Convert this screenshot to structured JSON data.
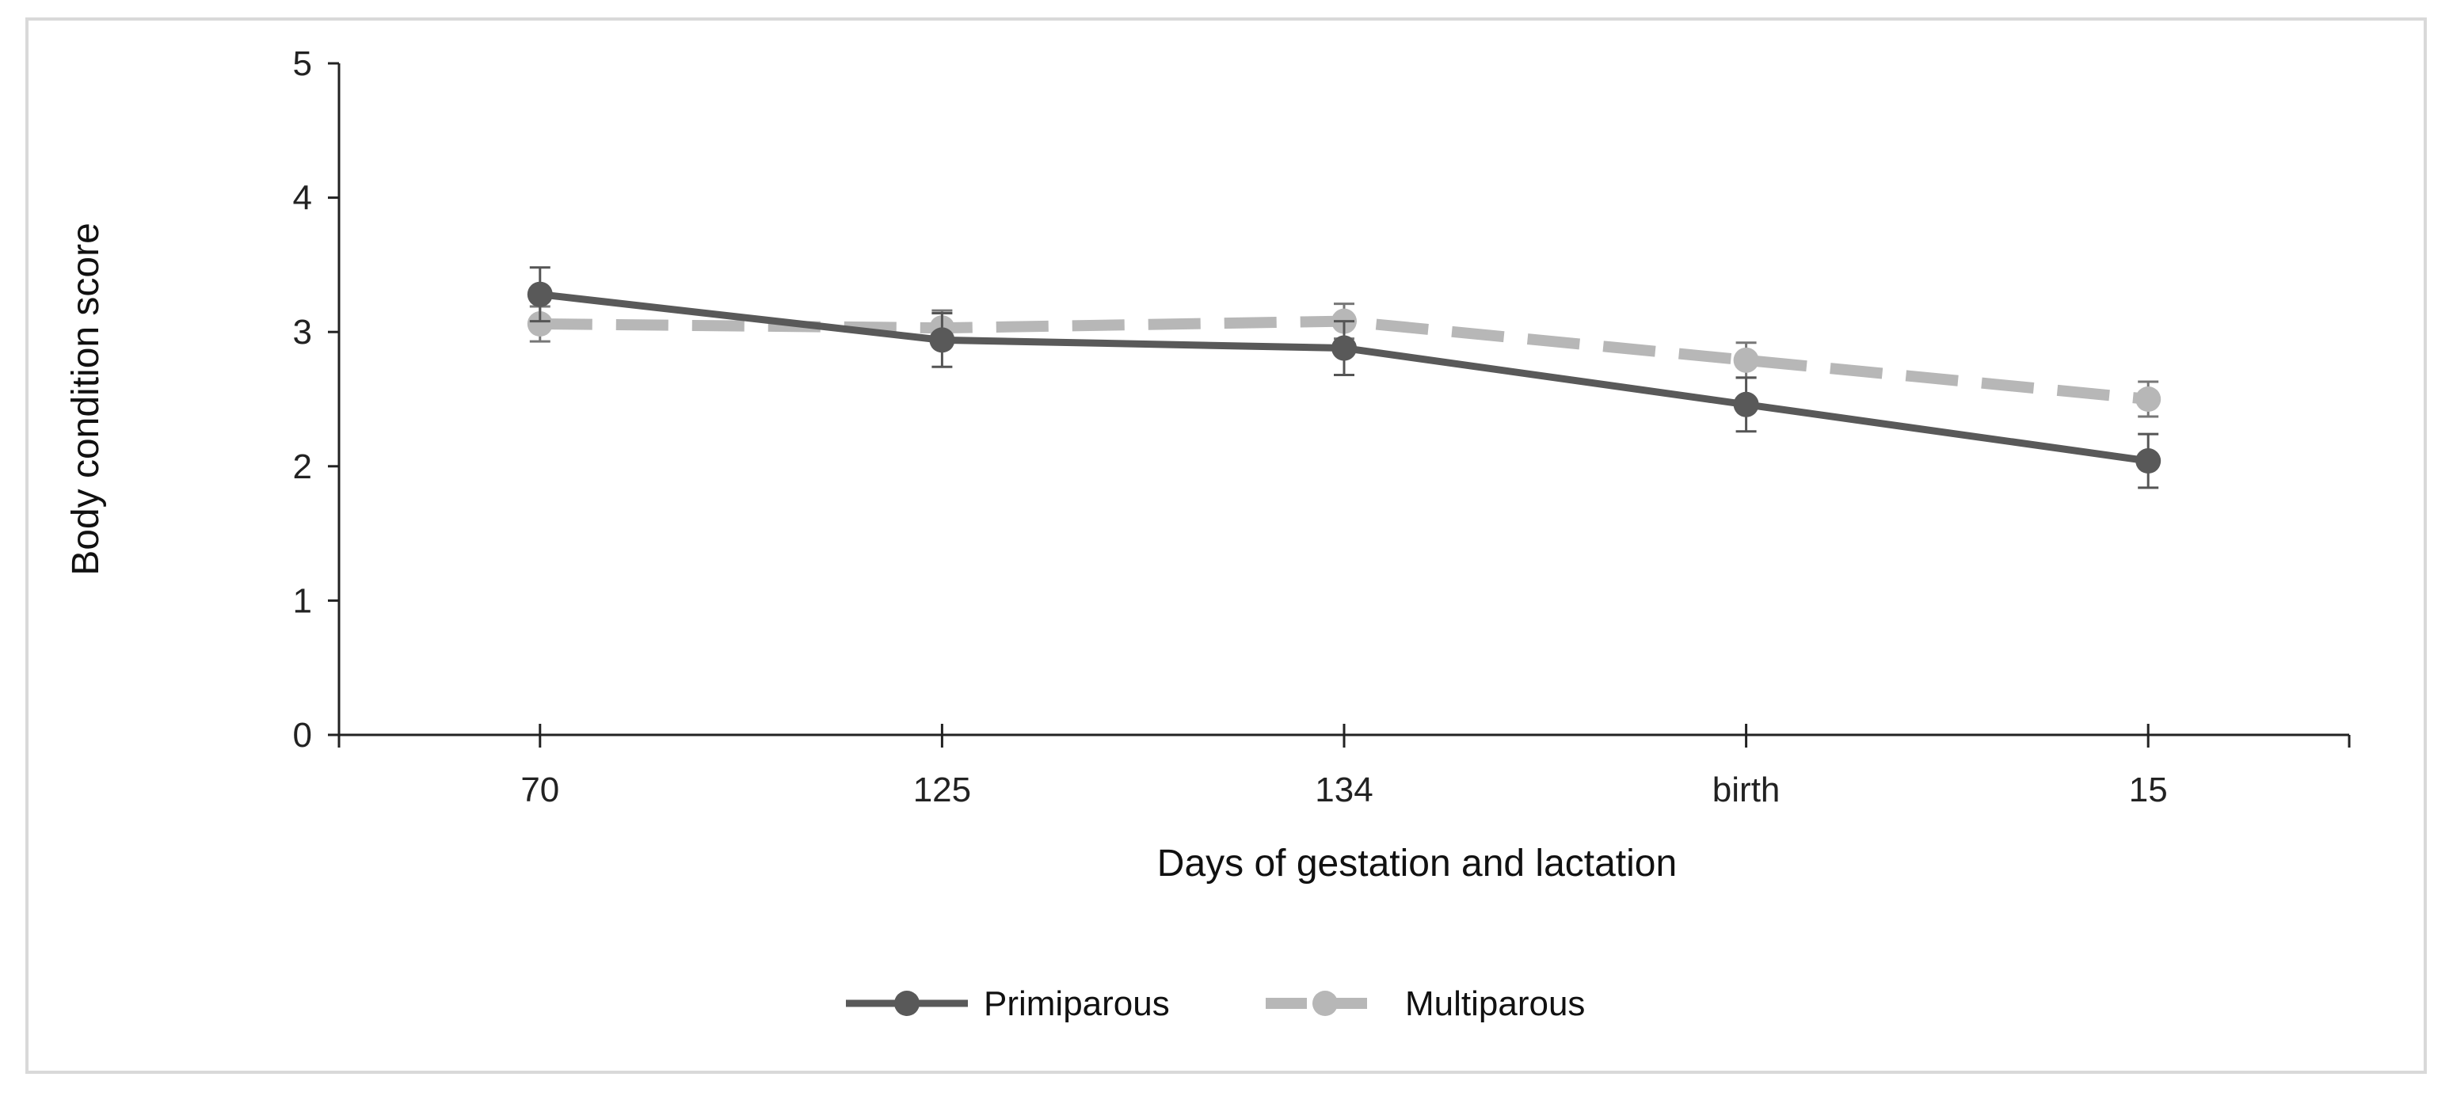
{
  "chart_data": {
    "type": "line",
    "title": "",
    "xlabel": "Days of gestation and lactation",
    "ylabel": "Body condition score",
    "categories": [
      "70",
      "125",
      "134",
      "birth",
      "15"
    ],
    "ylim": [
      0,
      5
    ],
    "yticks": [
      "0",
      "1",
      "2",
      "3",
      "4",
      "5"
    ],
    "grid": false,
    "legend_position": "bottom-center",
    "series": [
      {
        "name": "Primiparous",
        "values": [
          3.28,
          2.94,
          2.88,
          2.46,
          2.04
        ],
        "errors": [
          0.2,
          0.2,
          0.2,
          0.2,
          0.2
        ],
        "color": "#595959",
        "line_style": "solid"
      },
      {
        "name": "Multiparous",
        "values": [
          3.06,
          3.03,
          3.08,
          2.79,
          2.5
        ],
        "errors": [
          0.13,
          0.13,
          0.13,
          0.13,
          0.13
        ],
        "color": "#b7b7b7",
        "line_style": "dashed"
      }
    ]
  }
}
